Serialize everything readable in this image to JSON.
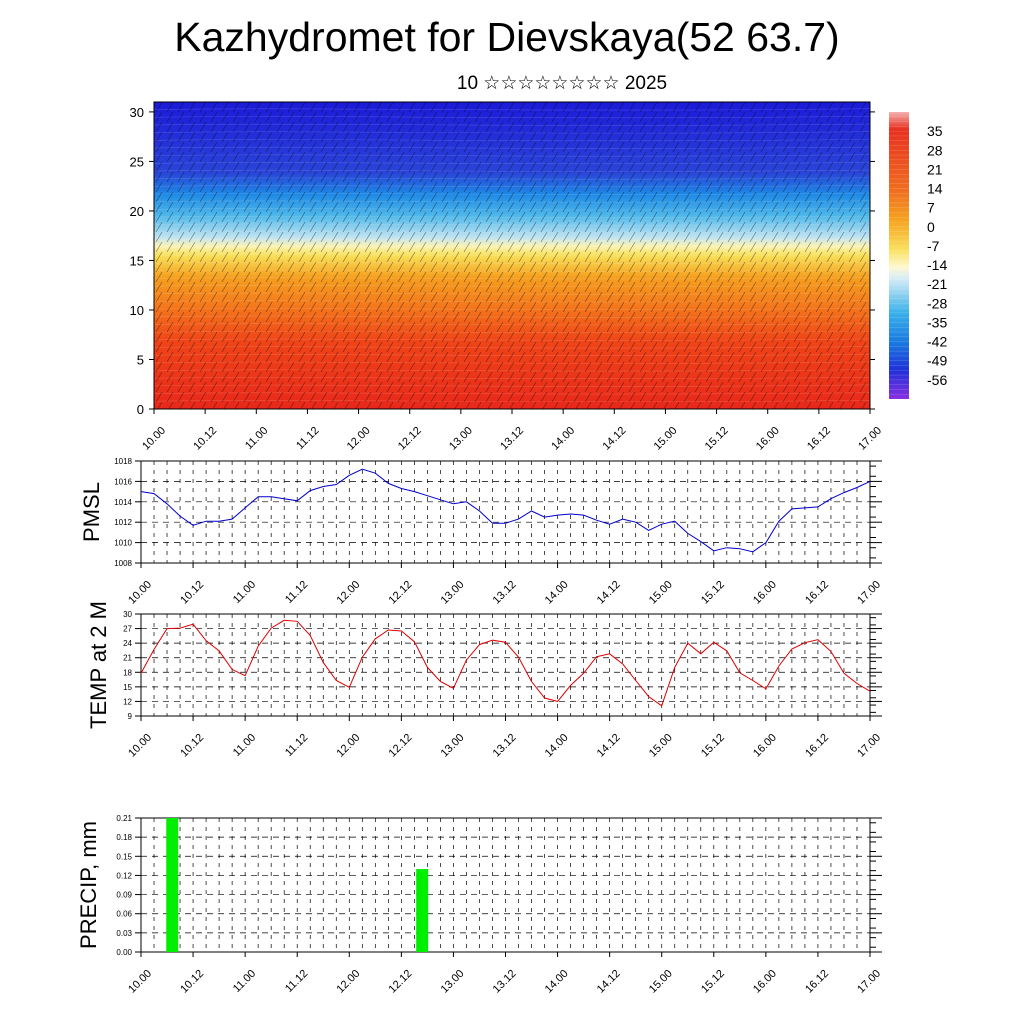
{
  "title": "Kazhydromet for Dievskaya(52 63.7)",
  "subtitle": "10 ☆☆☆☆☆☆☆☆ 2025",
  "chart_data": [
    {
      "type": "heatmap",
      "description_free": true,
      "x_tick_labels": [
        "10.00",
        "10.12",
        "11.00",
        "11.12",
        "12.00",
        "12.12",
        "13.00",
        "13.12",
        "14.00",
        "14.12",
        "15.00",
        "15.12",
        "16.00",
        "16.12",
        "17.00"
      ],
      "x_range": [
        0,
        14
      ],
      "y_ticks": [
        0,
        5,
        10,
        15,
        20,
        25,
        30
      ],
      "y_range": [
        0,
        31
      ],
      "colorbar_labels": [
        "35",
        "28",
        "21",
        "14",
        "7",
        "0",
        "-7",
        "-14",
        "-21",
        "-28",
        "-35",
        "-42",
        "-49",
        "-56"
      ],
      "colorbar_range": [
        -63,
        42
      ],
      "colors": {
        "hot": "#e8281a",
        "warm": "#f5a020",
        "yellow": "#f8e05a",
        "cool": "#bfe3f2",
        "cold": "#1e88e5",
        "frozen": "#1c1ad8"
      }
    },
    {
      "type": "line",
      "ylabel": "PMSL",
      "x_tick_labels": [
        "10.00",
        "10.12",
        "11.00",
        "11.12",
        "12.00",
        "12.12",
        "13.00",
        "13.12",
        "14.00",
        "14.12",
        "15.00",
        "15.12",
        "16.00",
        "16.12",
        "17.00"
      ],
      "y_ticks": [
        "1008",
        "1010",
        "1012",
        "1014",
        "1016",
        "1018"
      ],
      "ylim": [
        1008,
        1018
      ],
      "color": "#0000cc",
      "values": [
        1015.0,
        1014.8,
        1013.8,
        1012.6,
        1011.7,
        1012.1,
        1012.1,
        1012.3,
        1013.4,
        1014.5,
        1014.5,
        1014.3,
        1014.1,
        1015.1,
        1015.5,
        1015.7,
        1016.6,
        1017.2,
        1016.8,
        1015.8,
        1015.3,
        1015.0,
        1014.6,
        1014.2,
        1013.8,
        1014.0,
        1013.1,
        1011.9,
        1011.9,
        1012.3,
        1013.1,
        1012.5,
        1012.7,
        1012.8,
        1012.7,
        1012.2,
        1011.8,
        1012.3,
        1012.0,
        1011.2,
        1011.8,
        1012.1,
        1010.9,
        1010.1,
        1009.2,
        1009.5,
        1009.4,
        1009.1,
        1010.0,
        1012.1,
        1013.3,
        1013.4,
        1013.5,
        1014.3,
        1014.9,
        1015.4,
        1016.0
      ]
    },
    {
      "type": "line",
      "ylabel": "TEMP at 2 M",
      "x_tick_labels": [
        "10.00",
        "10.12",
        "11.00",
        "11.12",
        "12.00",
        "12.12",
        "13.00",
        "13.12",
        "14.00",
        "14.12",
        "15.00",
        "15.12",
        "16.00",
        "16.12",
        "17.00"
      ],
      "y_ticks": [
        "9",
        "12",
        "15",
        "18",
        "21",
        "24",
        "27",
        "30"
      ],
      "ylim": [
        9,
        30
      ],
      "color": "#dd0000",
      "values": [
        17.8,
        22.7,
        27.0,
        27.1,
        27.9,
        24.5,
        22.4,
        18.6,
        17.3,
        23.4,
        27.1,
        28.7,
        28.5,
        25.6,
        20.0,
        16.3,
        14.9,
        21.1,
        24.9,
        26.7,
        26.5,
        24.3,
        19.0,
        16.1,
        14.7,
        20.5,
        23.7,
        24.6,
        24.2,
        21.1,
        16.1,
        12.7,
        12.0,
        15.3,
        17.8,
        21.2,
        21.8,
        19.7,
        16.3,
        13.0,
        11.1,
        19.0,
        24.0,
        21.8,
        24.2,
        22.4,
        17.9,
        16.3,
        14.6,
        19.3,
        22.8,
        24.1,
        24.7,
        22.3,
        17.8,
        15.7,
        14.1
      ]
    },
    {
      "type": "bar",
      "ylabel": "PRECIP, mm",
      "x_tick_labels": [
        "10.00",
        "10.12",
        "11.00",
        "11.12",
        "12.00",
        "12.12",
        "13.00",
        "13.12",
        "14.00",
        "14.12",
        "15.00",
        "15.12",
        "16.00",
        "16.12",
        "17.00"
      ],
      "y_ticks": [
        "0.00",
        "0.03",
        "0.06",
        "0.09",
        "0.12",
        "0.15",
        "0.18",
        "0.21"
      ],
      "ylim": [
        0,
        0.21
      ],
      "color": "#00ee00",
      "bars": [
        {
          "x": 0.6,
          "value": 0.21
        },
        {
          "x": 5.4,
          "value": 0.13
        }
      ]
    }
  ]
}
